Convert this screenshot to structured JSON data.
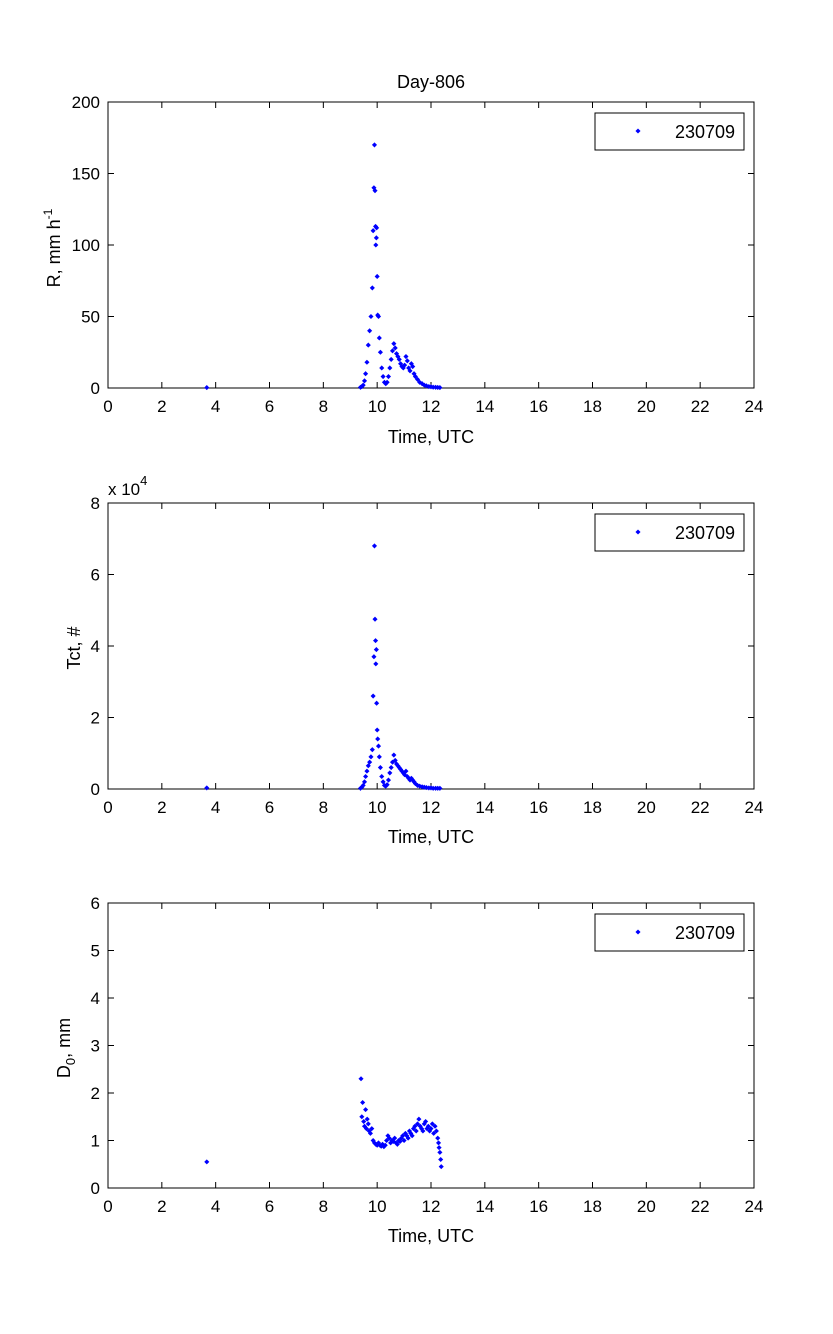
{
  "figure_title": "Day-806",
  "colors": {
    "series": "#0000ff",
    "axes": "#000000",
    "background": "#ffffff"
  },
  "chart_data": [
    {
      "type": "scatter",
      "id": "rain-rate",
      "title": "Day-806",
      "xlabel": "Time, UTC",
      "ylabel": "R, mm h",
      "ylabel_superscript": "-1",
      "xlim": [
        0,
        24
      ],
      "ylim": [
        0,
        200
      ],
      "xticks": [
        0,
        2,
        4,
        6,
        8,
        10,
        12,
        14,
        16,
        18,
        20,
        22,
        24
      ],
      "yticks": [
        0,
        50,
        100,
        150,
        200
      ],
      "legend": {
        "position": "top-right",
        "entries": [
          "230709"
        ]
      },
      "series": [
        {
          "name": "230709",
          "color": "#0000ff",
          "x": [
            3.67,
            9.38,
            9.43,
            9.48,
            9.53,
            9.57,
            9.62,
            9.67,
            9.72,
            9.77,
            9.82,
            9.85,
            9.88,
            9.9,
            9.92,
            9.94,
            9.95,
            9.97,
            9.98,
            10.0,
            10.02,
            10.05,
            10.08,
            10.12,
            10.17,
            10.22,
            10.27,
            10.32,
            10.37,
            10.42,
            10.47,
            10.52,
            10.57,
            10.62,
            10.67,
            10.72,
            10.77,
            10.82,
            10.87,
            10.92,
            10.97,
            11.02,
            11.07,
            11.12,
            11.17,
            11.22,
            11.27,
            11.32,
            11.37,
            11.42,
            11.5,
            11.58,
            11.67,
            11.75,
            11.83,
            11.92,
            12.0,
            12.08,
            12.17,
            12.25,
            12.33
          ],
          "y": [
            0.3,
            0.5,
            1,
            2,
            5,
            10,
            18,
            30,
            40,
            50,
            70,
            110,
            140,
            170,
            138,
            113,
            100,
            105,
            112,
            78,
            51,
            50,
            35,
            25,
            14,
            8,
            4,
            3,
            4,
            8,
            14,
            20,
            26,
            31,
            28,
            24,
            22,
            20,
            17,
            15,
            14,
            16,
            22,
            19,
            14,
            12,
            17,
            15,
            10,
            8,
            6,
            4,
            3,
            2,
            1.5,
            1,
            0.8,
            0.6,
            0.5,
            0.4,
            0.3
          ]
        }
      ]
    },
    {
      "type": "scatter",
      "id": "total-count",
      "title": "",
      "xlabel": "Time, UTC",
      "ylabel": "Tct, #",
      "scale_label": "x 10",
      "scale_exponent": "4",
      "xlim": [
        0,
        24
      ],
      "ylim": [
        0,
        8
      ],
      "xticks": [
        0,
        2,
        4,
        6,
        8,
        10,
        12,
        14,
        16,
        18,
        20,
        22,
        24
      ],
      "yticks": [
        0,
        2,
        4,
        6,
        8
      ],
      "legend": {
        "position": "top-right",
        "entries": [
          "230709"
        ]
      },
      "series": [
        {
          "name": "230709",
          "color": "#0000ff",
          "x": [
            3.67,
            9.38,
            9.43,
            9.48,
            9.53,
            9.57,
            9.62,
            9.67,
            9.72,
            9.77,
            9.82,
            9.85,
            9.88,
            9.9,
            9.92,
            9.94,
            9.95,
            9.97,
            9.98,
            10.0,
            10.02,
            10.05,
            10.08,
            10.12,
            10.17,
            10.22,
            10.27,
            10.32,
            10.37,
            10.42,
            10.47,
            10.52,
            10.57,
            10.62,
            10.67,
            10.72,
            10.77,
            10.82,
            10.87,
            10.92,
            10.97,
            11.02,
            11.07,
            11.12,
            11.17,
            11.22,
            11.27,
            11.32,
            11.37,
            11.42,
            11.5,
            11.58,
            11.67,
            11.75,
            11.83,
            11.92,
            12.0,
            12.08,
            12.17,
            12.25,
            12.33
          ],
          "y": [
            0.03,
            0.02,
            0.05,
            0.1,
            0.2,
            0.35,
            0.5,
            0.65,
            0.75,
            0.9,
            1.1,
            2.6,
            3.7,
            6.8,
            4.75,
            4.15,
            3.5,
            3.9,
            2.4,
            1.65,
            1.4,
            1.2,
            0.9,
            0.6,
            0.35,
            0.2,
            0.1,
            0.08,
            0.12,
            0.25,
            0.45,
            0.6,
            0.75,
            0.95,
            0.8,
            0.7,
            0.65,
            0.6,
            0.55,
            0.5,
            0.45,
            0.4,
            0.5,
            0.35,
            0.3,
            0.25,
            0.3,
            0.25,
            0.2,
            0.15,
            0.1,
            0.08,
            0.06,
            0.05,
            0.04,
            0.03,
            0.03,
            0.02,
            0.02,
            0.02,
            0.02
          ]
        }
      ]
    },
    {
      "type": "scatter",
      "id": "median-diameter",
      "title": "",
      "xlabel": "Time, UTC",
      "ylabel": "D",
      "ylabel_subscript": "0",
      "ylabel_suffix": ", mm",
      "xlim": [
        0,
        24
      ],
      "ylim": [
        0,
        6
      ],
      "xticks": [
        0,
        2,
        4,
        6,
        8,
        10,
        12,
        14,
        16,
        18,
        20,
        22,
        24
      ],
      "yticks": [
        0,
        1,
        2,
        3,
        4,
        5,
        6
      ],
      "legend": {
        "position": "top-right",
        "entries": [
          "230709"
        ]
      },
      "series": [
        {
          "name": "230709",
          "color": "#0000ff",
          "x": [
            3.67,
            9.4,
            9.43,
            9.46,
            9.5,
            9.53,
            9.57,
            9.6,
            9.63,
            9.67,
            9.7,
            9.75,
            9.8,
            9.85,
            9.9,
            9.95,
            10.0,
            10.05,
            10.1,
            10.15,
            10.2,
            10.25,
            10.3,
            10.35,
            10.4,
            10.45,
            10.5,
            10.55,
            10.6,
            10.65,
            10.7,
            10.75,
            10.8,
            10.85,
            10.9,
            10.95,
            11.0,
            11.05,
            11.1,
            11.15,
            11.2,
            11.25,
            11.3,
            11.35,
            11.4,
            11.45,
            11.5,
            11.55,
            11.6,
            11.65,
            11.7,
            11.75,
            11.8,
            11.85,
            11.9,
            11.95,
            12.0,
            12.05,
            12.1,
            12.15,
            12.2,
            12.25,
            12.28,
            12.3,
            12.33,
            12.36,
            12.38
          ],
          "y": [
            0.55,
            2.3,
            1.5,
            1.8,
            1.4,
            1.3,
            1.65,
            1.25,
            1.45,
            1.35,
            1.2,
            1.15,
            1.25,
            1.0,
            0.95,
            0.92,
            0.9,
            0.95,
            0.9,
            0.88,
            0.92,
            0.87,
            0.9,
            1.0,
            1.1,
            1.05,
            0.95,
            1.0,
            0.98,
            1.05,
            0.95,
            0.92,
            1.0,
            0.98,
            1.05,
            1.1,
            1.0,
            1.15,
            1.1,
            1.05,
            1.2,
            1.15,
            1.1,
            1.25,
            1.3,
            1.2,
            1.35,
            1.45,
            1.3,
            1.25,
            1.2,
            1.35,
            1.4,
            1.25,
            1.3,
            1.2,
            1.25,
            1.35,
            1.15,
            1.3,
            1.2,
            1.05,
            0.95,
            0.85,
            0.75,
            0.6,
            0.45
          ]
        }
      ]
    }
  ]
}
